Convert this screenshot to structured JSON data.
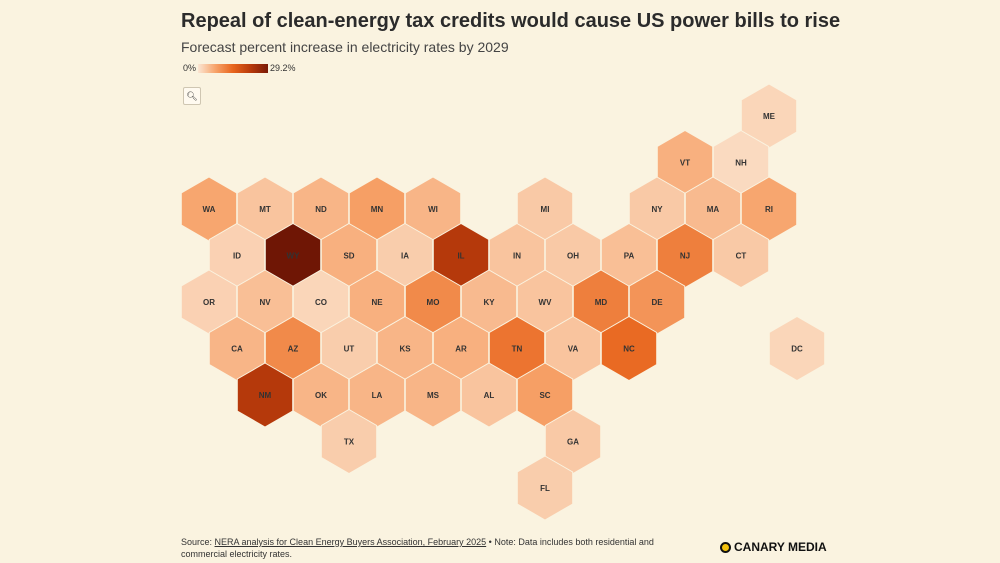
{
  "chart_data": {
    "type": "hexbin-map",
    "title": "Repeal of clean-energy tax credits would cause US power bills to rise",
    "subtitle": "Forecast percent increase in electricity rates by 2029",
    "legend": {
      "min_label": "0%",
      "max_label": "29.2%",
      "min": 0,
      "max": 29.2
    },
    "states": [
      {
        "state": "ME",
        "value": 4
      },
      {
        "state": "VT",
        "value": 12
      },
      {
        "state": "NH",
        "value": 3
      },
      {
        "state": "WA",
        "value": 14
      },
      {
        "state": "MT",
        "value": 8
      },
      {
        "state": "ND",
        "value": 11
      },
      {
        "state": "MN",
        "value": 15
      },
      {
        "state": "WI",
        "value": 11
      },
      {
        "state": "MI",
        "value": 7
      },
      {
        "state": "NY",
        "value": 7
      },
      {
        "state": "MA",
        "value": 10
      },
      {
        "state": "RI",
        "value": 14
      },
      {
        "state": "ID",
        "value": 5
      },
      {
        "state": "WY",
        "value": 29.2
      },
      {
        "state": "SD",
        "value": 12
      },
      {
        "state": "IA",
        "value": 6
      },
      {
        "state": "IL",
        "value": 25
      },
      {
        "state": "IN",
        "value": 8
      },
      {
        "state": "OH",
        "value": 7
      },
      {
        "state": "PA",
        "value": 9
      },
      {
        "state": "NJ",
        "value": 18
      },
      {
        "state": "CT",
        "value": 7
      },
      {
        "state": "OR",
        "value": 5
      },
      {
        "state": "NV",
        "value": 9
      },
      {
        "state": "CO",
        "value": 4
      },
      {
        "state": "NE",
        "value": 12
      },
      {
        "state": "MO",
        "value": 17
      },
      {
        "state": "KY",
        "value": 10
      },
      {
        "state": "WV",
        "value": 8
      },
      {
        "state": "MD",
        "value": 18
      },
      {
        "state": "DE",
        "value": 16
      },
      {
        "state": "DC",
        "value": 4
      },
      {
        "state": "CA",
        "value": 11
      },
      {
        "state": "AZ",
        "value": 17
      },
      {
        "state": "UT",
        "value": 6
      },
      {
        "state": "KS",
        "value": 11
      },
      {
        "state": "AR",
        "value": 12
      },
      {
        "state": "TN",
        "value": 19
      },
      {
        "state": "VA",
        "value": 8
      },
      {
        "state": "NC",
        "value": 20
      },
      {
        "state": "NM",
        "value": 25
      },
      {
        "state": "OK",
        "value": 11
      },
      {
        "state": "LA",
        "value": 11
      },
      {
        "state": "MS",
        "value": 11
      },
      {
        "state": "AL",
        "value": 8
      },
      {
        "state": "SC",
        "value": 15
      },
      {
        "state": "TX",
        "value": 6
      },
      {
        "state": "GA",
        "value": 7
      },
      {
        "state": "FL",
        "value": 6
      }
    ]
  },
  "zoom_icon": "search-icon",
  "source": {
    "prefix": "Source: ",
    "link_text": "NERA analysis for Clean Energy Buyers Association, February 2025",
    "note": " • Note: Data includes both residential and commercial electricity rates."
  },
  "brand": {
    "name": "CANARY MEDIA",
    "dot_color": "#f4c20d"
  }
}
